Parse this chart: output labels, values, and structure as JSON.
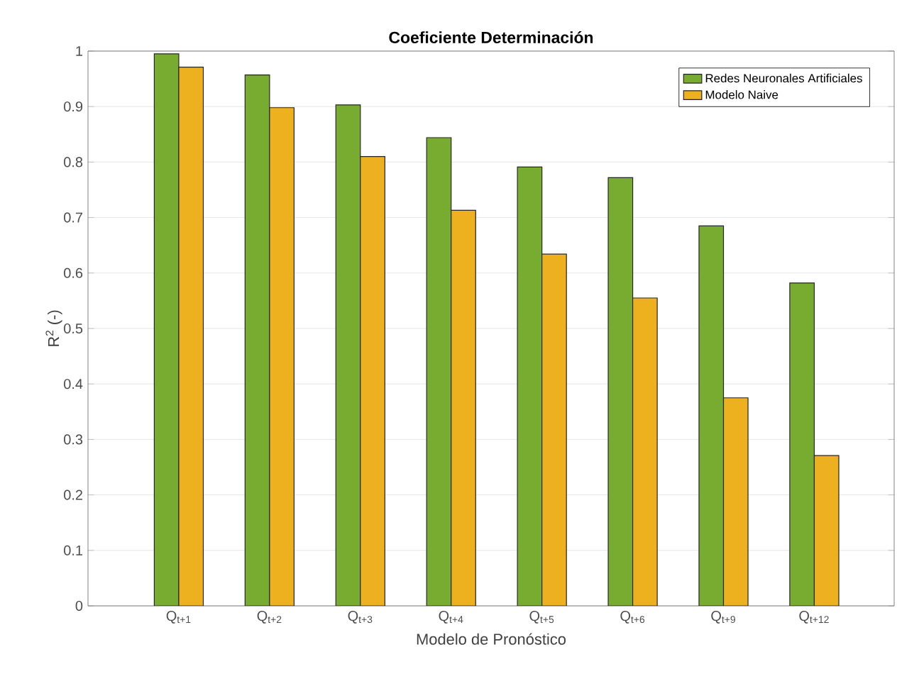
{
  "chart_data": {
    "type": "bar",
    "title": "Coeficiente Determinación",
    "xlabel": "Modelo de Pronóstico",
    "ylabel": "R$^{2}$ (-)",
    "categories": [
      "Q$_{t+1}$",
      "Q$_{t+2}$",
      "Q$_{t+3}$",
      "Q$_{t+4}$",
      "Q$_{t+5}$",
      "Q$_{t+6}$",
      "Q$_{t+9}$",
      "Q$_{t+12}$"
    ],
    "series": [
      {
        "name": "Redes Neuronales Artificiales",
        "color": "#77ac30",
        "values": [
          0.995,
          0.957,
          0.903,
          0.844,
          0.791,
          0.772,
          0.685,
          0.582
        ]
      },
      {
        "name": "Modelo Naive",
        "color": "#edb120",
        "values": [
          0.971,
          0.898,
          0.81,
          0.713,
          0.634,
          0.555,
          0.375,
          0.271
        ]
      }
    ],
    "ylim": [
      0,
      1
    ],
    "yticks": [
      0,
      0.1,
      0.2,
      0.3,
      0.4,
      0.5,
      0.6,
      0.7,
      0.8,
      0.9,
      1
    ],
    "grid": "y",
    "legend": "top right"
  }
}
